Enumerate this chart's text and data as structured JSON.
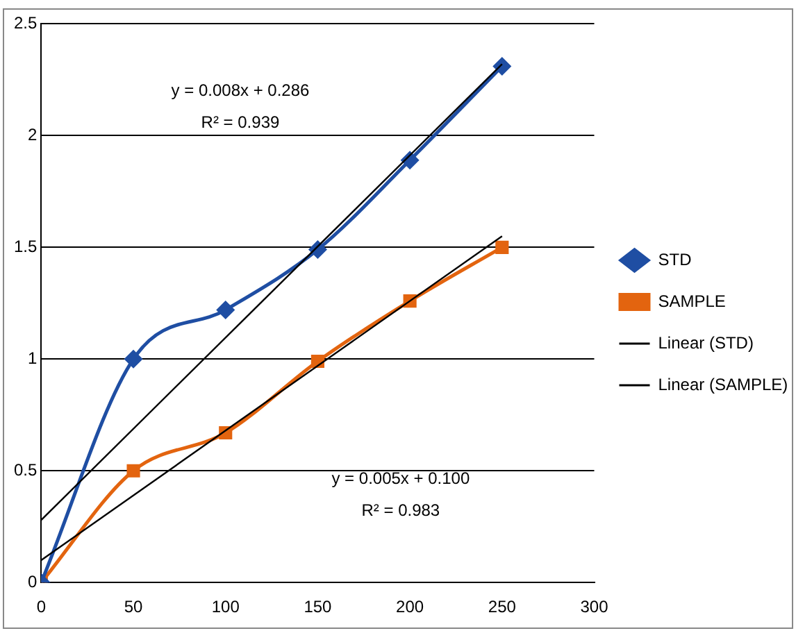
{
  "chart_data": {
    "type": "line",
    "xlim": [
      0,
      300
    ],
    "xticks": [
      0,
      50,
      100,
      150,
      200,
      250,
      300
    ],
    "ylim": [
      0,
      2.5
    ],
    "yticks": [
      0,
      0.5,
      1,
      1.5,
      2,
      2.5
    ],
    "grid": "y",
    "legend": "right",
    "line_style": "solid",
    "series": [
      {
        "name": "STD",
        "color": "#1f4ea3",
        "marker": "diamond",
        "x": [
          0,
          50,
          100,
          150,
          200,
          250
        ],
        "values": [
          0,
          1.0,
          1.22,
          1.49,
          1.89,
          2.31
        ]
      },
      {
        "name": "SAMPLE",
        "color": "#e3640f",
        "marker": "square",
        "x": [
          0,
          50,
          100,
          150,
          200,
          250
        ],
        "values": [
          0,
          0.5,
          0.67,
          0.99,
          1.26,
          1.5
        ]
      },
      {
        "name": "Linear (STD)",
        "color": "#000000",
        "marker": "none",
        "x": [
          0,
          250
        ],
        "values": [
          0.28,
          2.32
        ]
      },
      {
        "name": "Linear (SAMPLE)",
        "color": "#000000",
        "marker": "none",
        "x": [
          0,
          250
        ],
        "values": [
          0.1,
          1.55
        ]
      }
    ],
    "annotations": [
      "y = 0.008x + 0.286",
      "R² = 0.939",
      "y = 0.005x + 0.100",
      "R² = 0.983"
    ]
  }
}
